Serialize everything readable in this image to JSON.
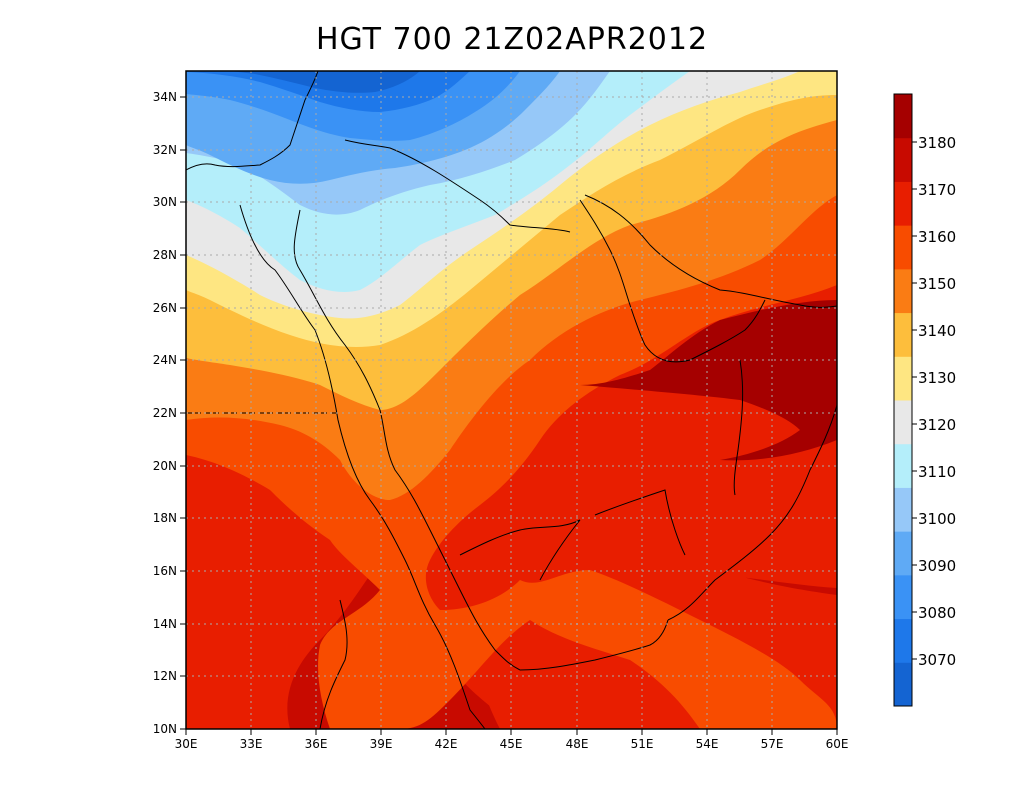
{
  "title": "HGT 700 21Z02APR2012",
  "map": {
    "lon_range": [
      30,
      60
    ],
    "lat_range": [
      10,
      35
    ],
    "grid": true,
    "x_ticks": [
      "30E",
      "33E",
      "36E",
      "39E",
      "42E",
      "45E",
      "48E",
      "51E",
      "54E",
      "57E",
      "60E"
    ],
    "y_ticks": [
      "10N",
      "12N",
      "14N",
      "16N",
      "18N",
      "20N",
      "22N",
      "24N",
      "26N",
      "28N",
      "30N",
      "32N",
      "34N"
    ]
  },
  "colorbar": {
    "placement": "right",
    "labels": [
      "3070",
      "3080",
      "3090",
      "3100",
      "3110",
      "3120",
      "3130",
      "3140",
      "3150",
      "3160",
      "3170",
      "3180"
    ],
    "colors": [
      "#1464d2",
      "#1e78ea",
      "#3a92f5",
      "#5faaf5",
      "#96c8f8",
      "#b4eefa",
      "#e8e8e8",
      "#fee682",
      "#fdbe3c",
      "#fa7c14",
      "#f84c00",
      "#e81e00",
      "#c80a00",
      "#a50000"
    ]
  }
}
